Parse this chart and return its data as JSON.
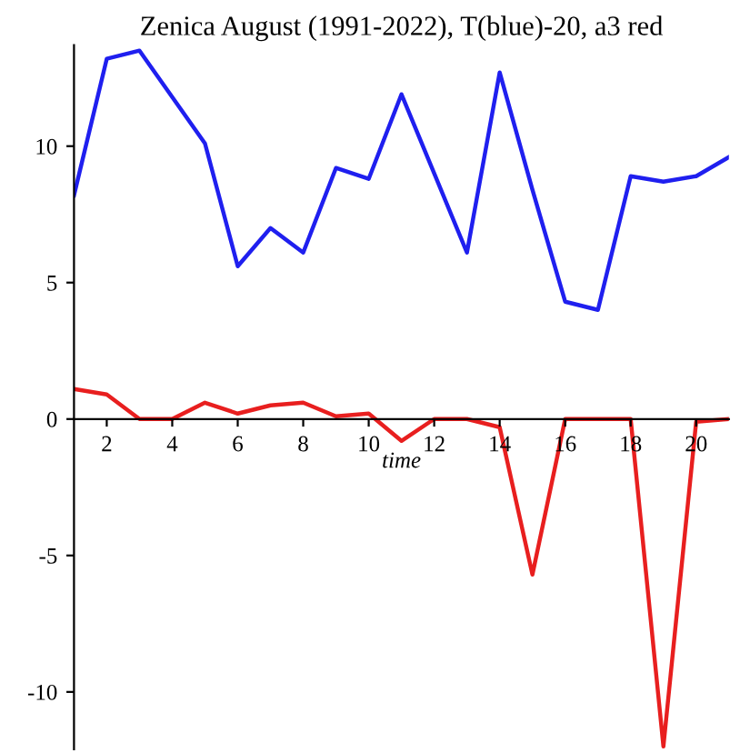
{
  "chart_data": {
    "type": "line",
    "title": "Zenica August (1991-2022), T(blue)-20, a3 red",
    "xlabel": "time",
    "x": [
      1,
      2,
      3,
      4,
      5,
      6,
      7,
      8,
      9,
      10,
      11,
      12,
      13,
      14,
      15,
      16,
      17,
      18,
      19,
      20,
      21
    ],
    "series": [
      {
        "color": "#1f1fef",
        "values": [
          8.2,
          13.2,
          13.5,
          11.8,
          10.1,
          5.6,
          7.0,
          6.1,
          9.2,
          8.8,
          11.9,
          9.0,
          6.1,
          12.7,
          8.4,
          4.3,
          4.0,
          8.9,
          8.7,
          8.9,
          9.6
        ]
      },
      {
        "color": "#e81f1f",
        "values": [
          1.1,
          0.9,
          0,
          0,
          0.6,
          0.2,
          0.5,
          0.6,
          0.1,
          0.2,
          -0.8,
          0,
          0,
          -0.3,
          -5.7,
          0,
          0,
          0,
          -12,
          -0.1,
          0
        ]
      }
    ],
    "xlim": [
      1,
      21
    ],
    "ylim": [
      -12.1,
      13.7
    ],
    "xticks": [
      2,
      4,
      6,
      8,
      10,
      12,
      14,
      16,
      18,
      20
    ],
    "yticks": [
      -10,
      -5,
      0,
      5,
      10
    ],
    "grid": false,
    "legend": false,
    "marker": "none",
    "line_style": "solid"
  }
}
